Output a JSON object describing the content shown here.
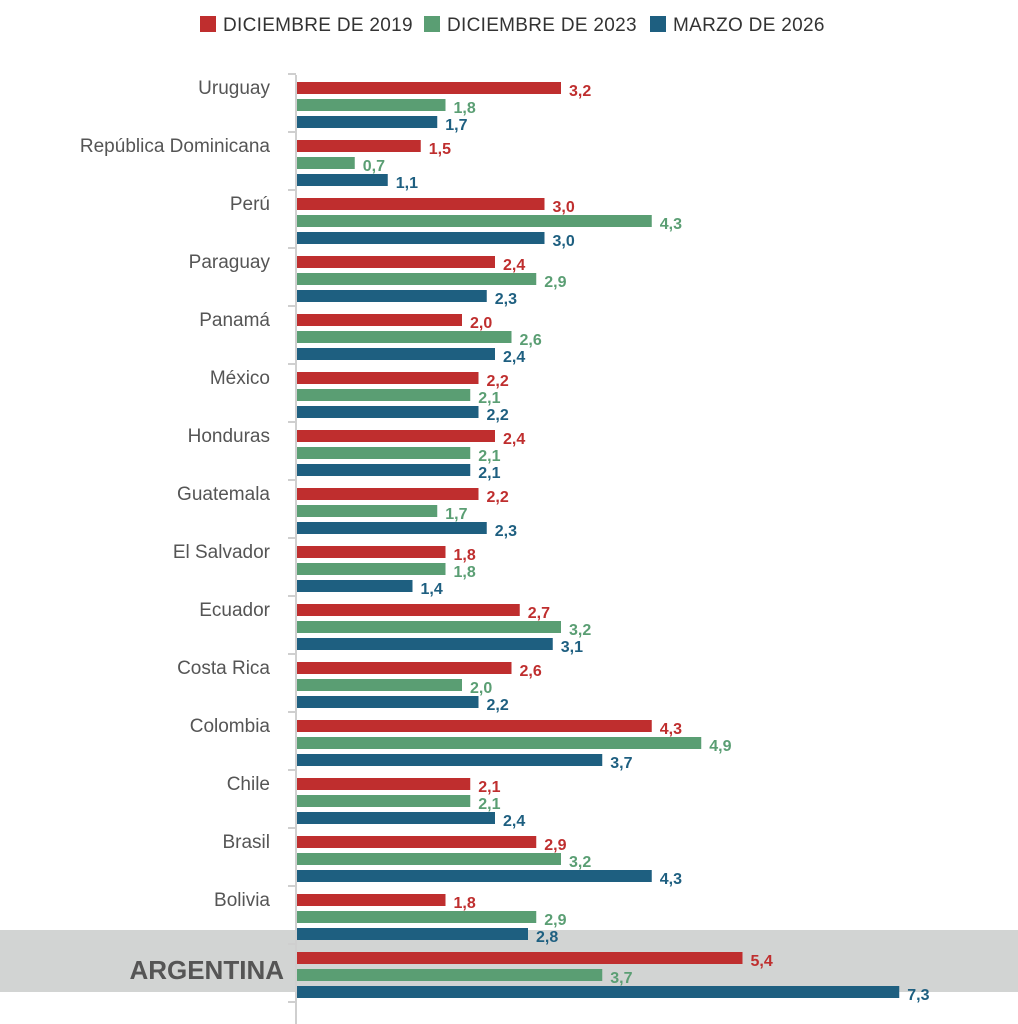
{
  "chart_data": {
    "type": "bar",
    "orientation": "horizontal",
    "title": "",
    "xlabel": "",
    "ylabel": "",
    "xlim": [
      0,
      7.3
    ],
    "grid": false,
    "legend_position": "top-center",
    "decimal_separator": ",",
    "highlight_category": "ARGENTINA",
    "highlight_color": "#d2d4d3",
    "highlight_text_color": "#e0620f",
    "categories": [
      "Uruguay",
      "República Dominicana",
      "Perú",
      "Paraguay",
      "Panamá",
      "México",
      "Honduras",
      "Guatemala",
      "El Salvador",
      "Ecuador",
      "Costa Rica",
      "Colombia",
      "Chile",
      "Brasil",
      "Bolivia",
      "ARGENTINA"
    ],
    "series": [
      {
        "name": "DICIEMBRE DE 2019",
        "color": "#bf2e2e",
        "values": [
          3.2,
          1.5,
          3.0,
          2.4,
          2.0,
          2.2,
          2.4,
          2.2,
          1.8,
          2.7,
          2.6,
          4.3,
          2.1,
          2.9,
          1.8,
          5.4
        ]
      },
      {
        "name": "DICIEMBRE DE 2023",
        "color": "#5a9e73",
        "values": [
          1.8,
          0.7,
          4.3,
          2.9,
          2.6,
          2.1,
          2.1,
          1.7,
          1.8,
          3.2,
          2.0,
          4.9,
          2.1,
          3.2,
          2.9,
          3.7
        ]
      },
      {
        "name": "MARZO DE 2026",
        "color": "#1e5f80",
        "values": [
          1.7,
          1.1,
          3.0,
          2.3,
          2.4,
          2.2,
          2.1,
          2.3,
          1.4,
          3.1,
          2.2,
          3.7,
          2.4,
          4.3,
          2.8,
          7.3
        ]
      }
    ]
  }
}
